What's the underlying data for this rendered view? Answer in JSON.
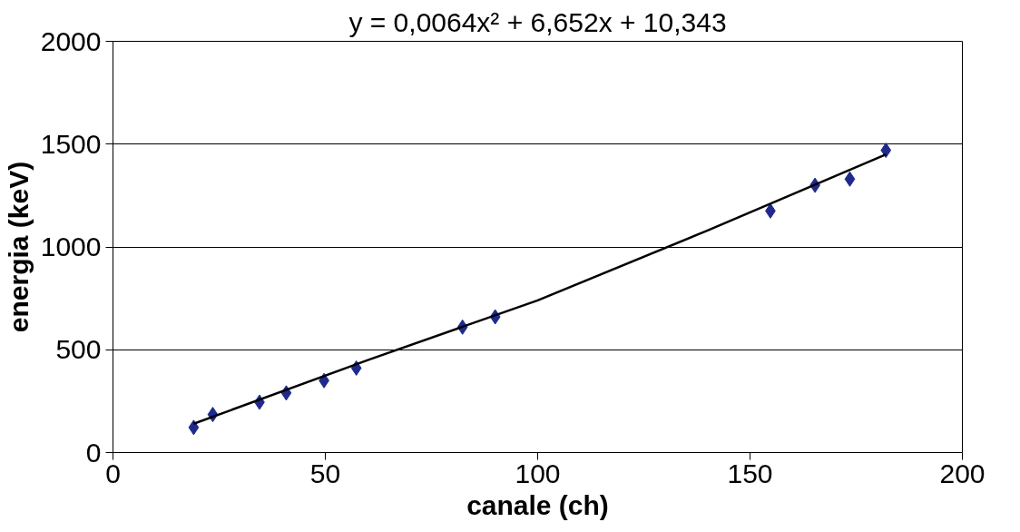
{
  "chart_data": {
    "type": "scatter",
    "title": "y = 0,0064x² + 6,652x + 10,343",
    "xlabel": "canale (ch)",
    "ylabel": "energia (keV)",
    "series": [
      {
        "color": "#1f2a8c",
        "marker": "diamond",
        "x": [
          19,
          23.5,
          34.5,
          40.8,
          49.7,
          57.3,
          82.3,
          90,
          154.8,
          165.3,
          173.5,
          182
        ],
        "values": [
          122,
          185,
          245,
          290,
          350,
          411,
          610,
          660,
          1175,
          1300,
          1330,
          1470
        ]
      },
      {
        "type": "line",
        "color": "#000000",
        "marker": "none",
        "x": [
          19,
          60,
          100,
          140,
          182
        ],
        "values": [
          140,
          450,
          740,
          1080,
          1450
        ]
      }
    ],
    "xlim": [
      0,
      200
    ],
    "xticks": [
      0,
      50,
      100,
      150,
      200
    ],
    "ylim": [
      0,
      2000
    ],
    "yticks": [
      0,
      500,
      1000,
      1500,
      2000
    ],
    "grid": "y"
  }
}
